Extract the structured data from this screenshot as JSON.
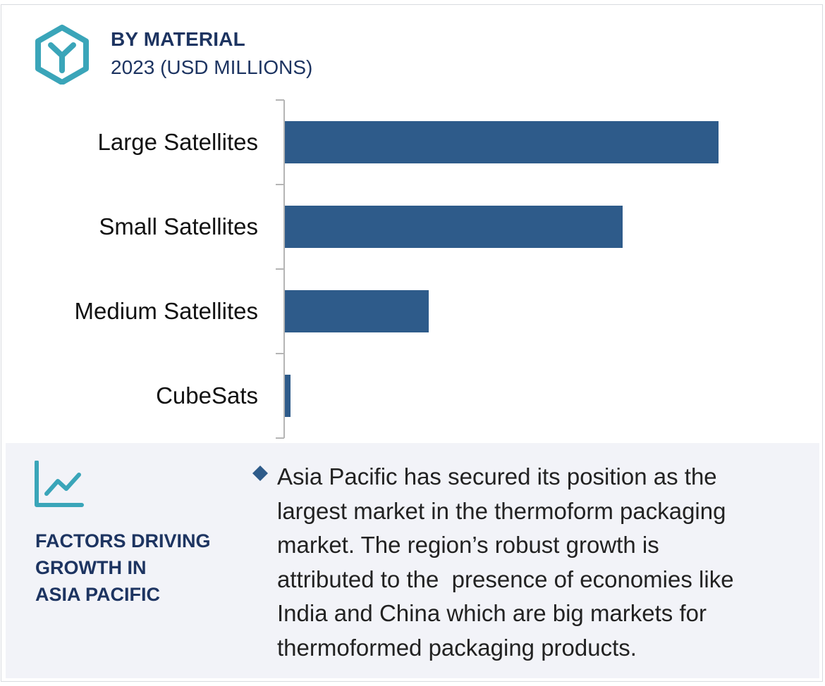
{
  "header": {
    "title": "BY MATERIAL",
    "subtitle": "2023 (USD MILLIONS)",
    "logo_icon": "hexagon-y-logo-icon",
    "accent_color": "#3aa5b9",
    "text_color": "#1d3461"
  },
  "chart_data": {
    "type": "bar",
    "orientation": "horizontal",
    "title": "BY MATERIAL",
    "subtitle": "2023 (USD MILLIONS)",
    "categories": [
      "Large Satellites",
      "Small Satellites",
      "Medium Satellites",
      "CubeSats"
    ],
    "values": [
      615,
      479,
      204,
      8
    ],
    "xlim": [
      0,
      700
    ],
    "bar_color": "#2e5b8a",
    "grid": false,
    "legend": "none",
    "xlabel": "",
    "ylabel": ""
  },
  "factors": {
    "icon": "line-chart-growth-icon",
    "heading_lines": [
      "FACTORS DRIVING",
      "GROWTH IN",
      "ASIA PACIFIC"
    ],
    "bullet_icon": "diamond-bullet-icon",
    "description_lines": [
      "Asia Pacific has secured its position as the",
      "largest market in the thermoform packaging",
      "market. The region’s robust growth is",
      "attributed to the  presence of economies like",
      "India and China which are big markets for",
      "thermoformed packaging products."
    ]
  }
}
